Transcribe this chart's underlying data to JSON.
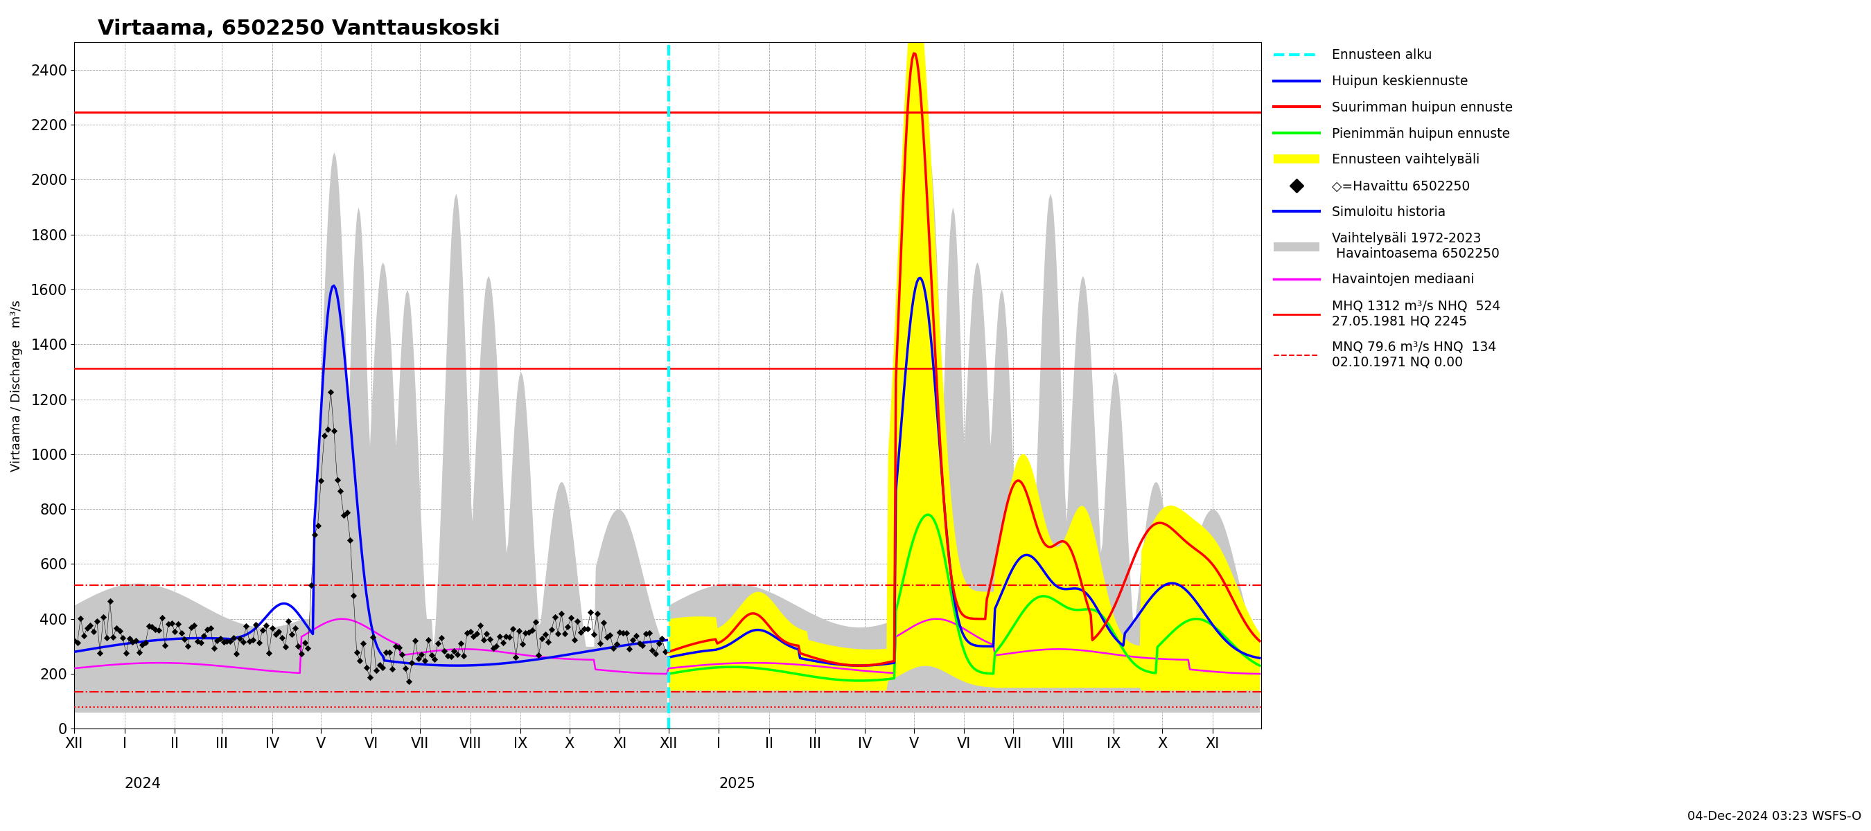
{
  "title": "Virtaama, 6502250 Vanttauskoski",
  "ylabel": "Virtaama / Discharge   m³/s",
  "ylim": [
    0,
    2500
  ],
  "yticks": [
    0,
    200,
    400,
    600,
    800,
    1000,
    1200,
    1400,
    1600,
    1800,
    2000,
    2200,
    2400
  ],
  "hline_HQ": 2245,
  "hline_MHQ": 1312,
  "hline_MNQ": 79.6,
  "hline_NHQ": 524,
  "hline_HNQ": 134,
  "bottom_text": "04-Dec-2024 03:23 WSFS-O",
  "x_month_labels": [
    "XII",
    "I",
    "II",
    "III",
    "IV",
    "V",
    "VI",
    "VII",
    "VIII",
    "IX",
    "X",
    "XI",
    "XII",
    "I",
    "II",
    "III",
    "IV",
    "V",
    "VI",
    "VII",
    "VIII",
    "IX",
    "X",
    "XI"
  ],
  "year_2024_label": "2024",
  "year_2025_label": "2025"
}
